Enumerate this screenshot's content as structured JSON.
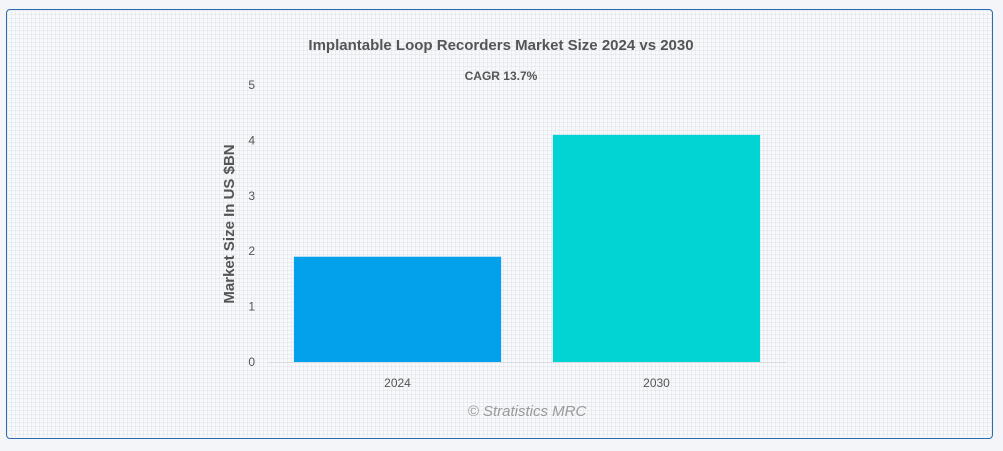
{
  "chart_data": {
    "type": "bar",
    "title": "Implantable Loop Recorders Market Size 2024 vs 2030",
    "subtitle": "CAGR 13.7%",
    "ylabel": "Market Size In US $BN",
    "xlabel": "",
    "categories": [
      "2024",
      "2030"
    ],
    "values": [
      1.9,
      4.1
    ],
    "colors": [
      "#03a0ec",
      "#02d4d4"
    ],
    "ylim": [
      0,
      5
    ],
    "yticks": [
      "0",
      "1",
      "2",
      "3",
      "4",
      "5"
    ],
    "grid": false,
    "legend": "none"
  },
  "credit": "© Stratistics MRC"
}
